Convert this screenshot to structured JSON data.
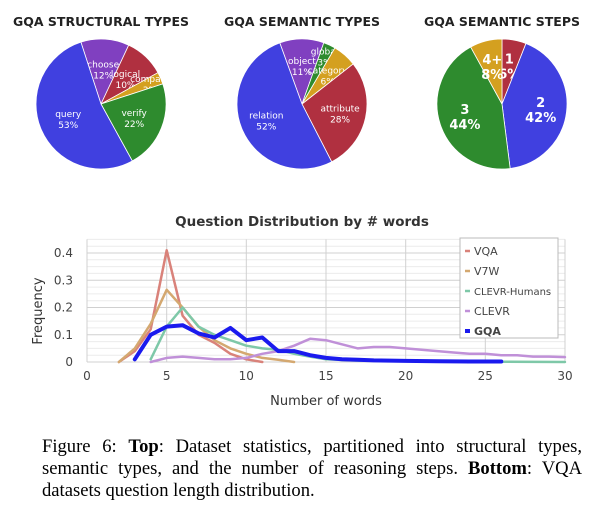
{
  "chart_data": [
    {
      "type": "pie",
      "title": "GQA STRUCTURAL TYPES",
      "slices": [
        {
          "label": "choose",
          "value": 12,
          "display": "12%",
          "color": "#8040c0"
        },
        {
          "label": "logical",
          "value": 10,
          "display": "10%",
          "color": "#b03040"
        },
        {
          "label": "compare",
          "value": 3,
          "display": "3%",
          "color": "#d4a020"
        },
        {
          "label": "verify",
          "value": 22,
          "display": "22%",
          "color": "#2e8b2e"
        },
        {
          "label": "query",
          "value": 53,
          "display": "53%",
          "color": "#4040e0"
        }
      ]
    },
    {
      "type": "pie",
      "title": "GQA SEMANTIC TYPES",
      "slices": [
        {
          "label": "object",
          "value": 11,
          "display": "11%",
          "color": "#8040c0"
        },
        {
          "label": "global",
          "value": 3,
          "display": "3%",
          "color": "#2e8b2e"
        },
        {
          "label": "category",
          "value": 6,
          "display": "6%",
          "color": "#d4a020"
        },
        {
          "label": "attribute",
          "value": 28,
          "display": "28%",
          "color": "#b03040"
        },
        {
          "label": "relation",
          "value": 52,
          "display": "52%",
          "color": "#4040e0"
        }
      ]
    },
    {
      "type": "pie",
      "title": "GQA SEMANTIC STEPS",
      "slices": [
        {
          "label": "1",
          "value": 6,
          "display": "6%",
          "color": "#b03040"
        },
        {
          "label": "2",
          "value": 42,
          "display": "42%",
          "color": "#4040e0"
        },
        {
          "label": "3",
          "value": 44,
          "display": "44%",
          "color": "#2e8b2e"
        },
        {
          "label": "4+",
          "value": 8,
          "display": "8%",
          "color": "#d4a020"
        }
      ]
    },
    {
      "type": "line",
      "title": "Question Distribution by # words",
      "xlabel": "Number of words",
      "ylabel": "Frequency",
      "xlim": [
        0,
        30
      ],
      "ylim": [
        0,
        0.45
      ],
      "xticks": [
        "0",
        "5",
        "10",
        "15",
        "20",
        "25",
        "30"
      ],
      "yticks": [
        "0",
        "0.1",
        "0.2",
        "0.3",
        "0.4"
      ],
      "grid": true,
      "legend_position": "top-right",
      "series": [
        {
          "name": "VQA",
          "color": "#d9827a",
          "width": 2.5,
          "x": [
            2,
            3,
            4,
            5,
            6,
            7,
            8,
            9,
            10,
            11
          ],
          "y": [
            0.0,
            0.04,
            0.12,
            0.41,
            0.17,
            0.1,
            0.07,
            0.03,
            0.01,
            0.0
          ]
        },
        {
          "name": "V7W",
          "color": "#d4a870",
          "width": 2.5,
          "x": [
            2,
            3,
            4,
            5,
            6,
            7,
            8,
            9,
            10,
            11,
            12,
            13
          ],
          "y": [
            0.0,
            0.05,
            0.14,
            0.265,
            0.2,
            0.13,
            0.08,
            0.05,
            0.03,
            0.015,
            0.008,
            0.0
          ]
        },
        {
          "name": "CLEVR-Humans",
          "color": "#7ec8a8",
          "width": 2.5,
          "x": [
            4,
            5,
            6,
            7,
            8,
            9,
            10,
            11,
            12,
            13,
            14,
            15,
            17,
            20,
            25,
            30
          ],
          "y": [
            0.01,
            0.13,
            0.2,
            0.13,
            0.1,
            0.08,
            0.06,
            0.05,
            0.045,
            0.03,
            0.02,
            0.01,
            0.005,
            0.003,
            0.001,
            0.0
          ]
        },
        {
          "name": "CLEVR",
          "color": "#c090d8",
          "width": 2.5,
          "x": [
            4,
            5,
            6,
            7,
            8,
            9,
            10,
            11,
            12,
            13,
            14,
            15,
            16,
            17,
            18,
            19,
            20,
            21,
            22,
            23,
            24,
            25,
            26,
            27,
            28,
            29,
            30
          ],
          "y": [
            0.0,
            0.015,
            0.02,
            0.015,
            0.01,
            0.01,
            0.015,
            0.03,
            0.04,
            0.06,
            0.085,
            0.08,
            0.065,
            0.05,
            0.055,
            0.055,
            0.05,
            0.045,
            0.04,
            0.035,
            0.03,
            0.03,
            0.025,
            0.025,
            0.02,
            0.02,
            0.018
          ]
        },
        {
          "name": "GQA",
          "color": "#1a1aee",
          "width": 4,
          "x": [
            3,
            4,
            5,
            6,
            7,
            8,
            9,
            10,
            11,
            12,
            13,
            14,
            15,
            16,
            17,
            18,
            19,
            20,
            22,
            24,
            26
          ],
          "y": [
            0.01,
            0.1,
            0.13,
            0.135,
            0.105,
            0.09,
            0.125,
            0.08,
            0.09,
            0.04,
            0.04,
            0.025,
            0.015,
            0.01,
            0.008,
            0.006,
            0.005,
            0.004,
            0.003,
            0.002,
            0.002
          ]
        }
      ]
    }
  ],
  "caption": {
    "prefix": "Figure 6: ",
    "bold1": "Top",
    "text1": ": Dataset statistics, partitioned into structural types, semantic types, and the number of reasoning steps. ",
    "bold2": "Bottom",
    "text2": ": VQA datasets question length distribution."
  }
}
